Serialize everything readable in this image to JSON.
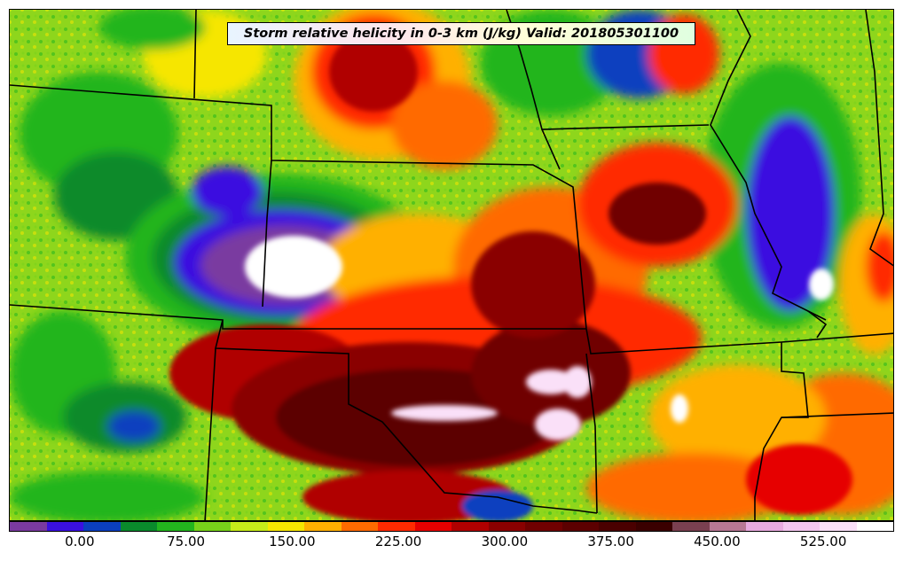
{
  "map": {
    "title": "Storm relative helicity in 0-3 km (J/kg) Valid: 201805301100",
    "field": "storm_relative_helicity_0_3km",
    "region": "Central United States (Southern Plains / Midwest)",
    "valid_time": "201805301100",
    "units": "J/kg"
  },
  "colorbar": {
    "colors": [
      "#7a3aa0",
      "#3a10e0",
      "#0b3fbf",
      "#0a8a2c",
      "#23b51e",
      "#78d21a",
      "#c6eb1a",
      "#f6e600",
      "#ffb000",
      "#ff6b00",
      "#ff2a00",
      "#e60000",
      "#b00000",
      "#8a0000",
      "#700000",
      "#5c0000",
      "#4a0000",
      "#3a0000",
      "#7a4050",
      "#b87894",
      "#e8aadf",
      "#f3c6ef",
      "#fae0f8",
      "#ffffff"
    ],
    "ticks": [
      {
        "label": "0.00",
        "value": 0
      },
      {
        "label": "75.00",
        "value": 75
      },
      {
        "label": "150.00",
        "value": 150
      },
      {
        "label": "225.00",
        "value": 225
      },
      {
        "label": "300.00",
        "value": 300
      },
      {
        "label": "375.00",
        "value": 375
      },
      {
        "label": "450.00",
        "value": 450
      },
      {
        "label": "525.00",
        "value": 525
      }
    ],
    "range": [
      -50,
      575
    ],
    "step": 25
  }
}
